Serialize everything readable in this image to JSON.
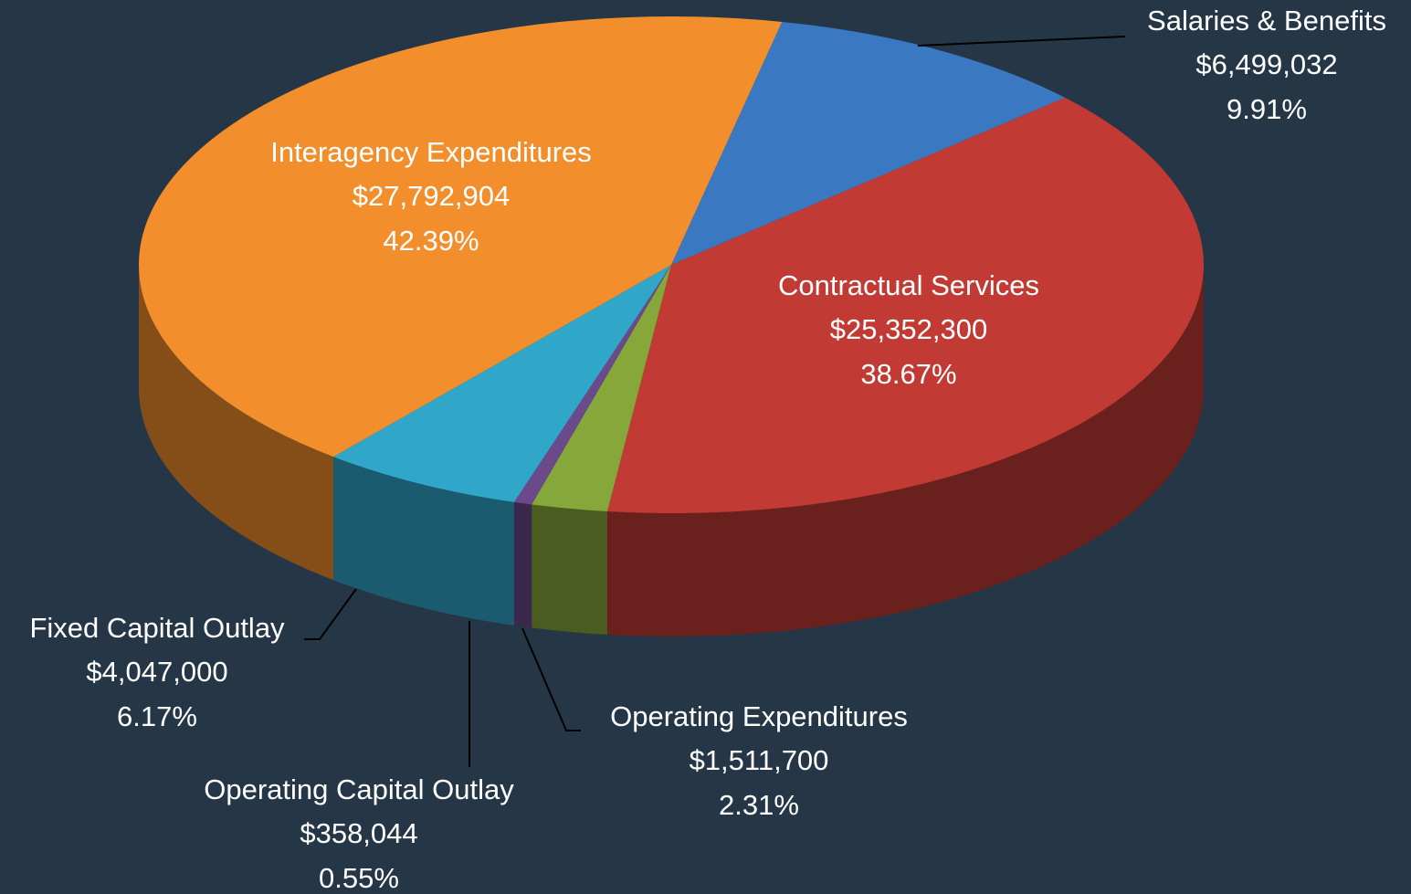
{
  "chart_data": {
    "type": "pie",
    "categories": [
      "Salaries & Benefits",
      "Contractual Services",
      "Operating Expenditures",
      "Operating Capital Outlay",
      "Fixed Capital Outlay",
      "Interagency Expenditures"
    ],
    "values": [
      6499032,
      25352300,
      1511700,
      358044,
      4047000,
      27792904
    ],
    "value_labels": [
      "$6,499,032",
      "$25,352,300",
      "$1,511,700",
      "$358,044",
      "$4,047,000",
      "$27,792,904"
    ],
    "percent_labels": [
      "9.91%",
      "38.67%",
      "2.31%",
      "0.55%",
      "6.17%",
      "42.39%"
    ],
    "colors": [
      "#3a78c2",
      "#c13a34",
      "#86a83a",
      "#6a4a8a",
      "#30a6c9",
      "#f28e2b"
    ]
  }
}
